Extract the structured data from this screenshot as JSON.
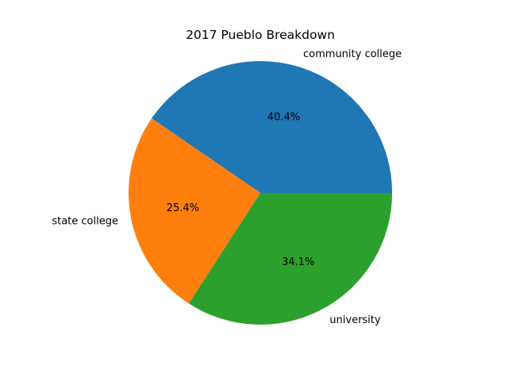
{
  "chart_data": {
    "type": "pie",
    "title": "2017 Pueblo Breakdown",
    "slices": [
      {
        "label": "community college",
        "value": 40.4,
        "pct_label": "40.4%",
        "color": "#1f77b4"
      },
      {
        "label": "state college",
        "value": 25.4,
        "pct_label": "25.4%",
        "color": "#ff7f0e"
      },
      {
        "label": "university",
        "value": 34.1,
        "pct_label": "34.1%",
        "color": "#2ca02c"
      }
    ],
    "start_angle_deg": 0,
    "direction": "counterclockwise",
    "legend": "none"
  }
}
